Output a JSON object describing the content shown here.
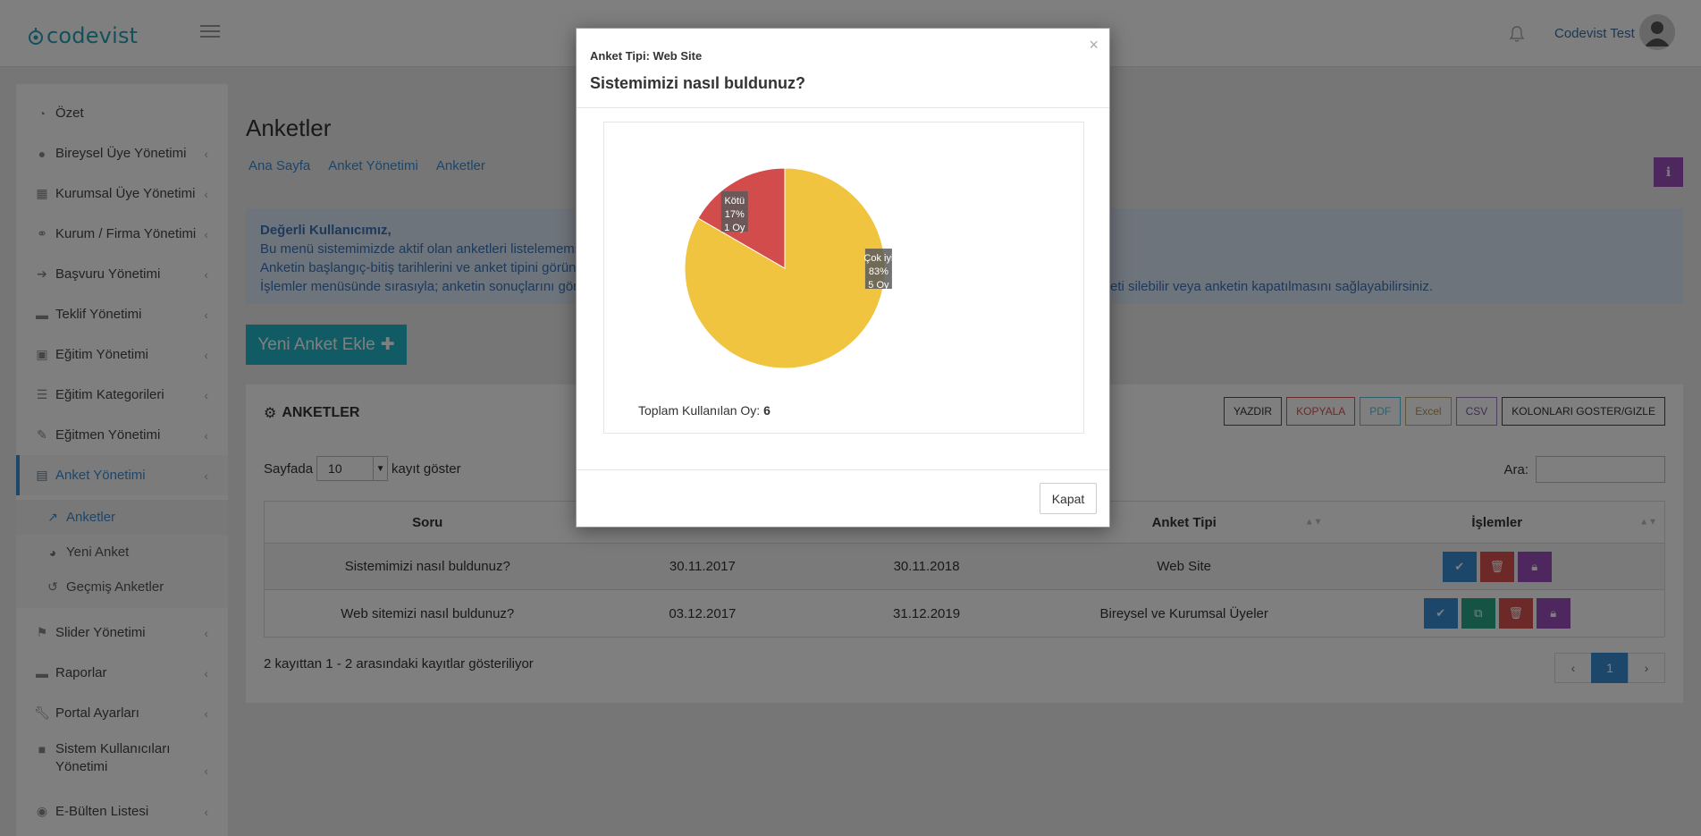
{
  "header": {
    "logo_text": "codevist",
    "user_name": "Codevist Test"
  },
  "sidebar": {
    "items": [
      {
        "label": "Özet",
        "icon": "dashboard-icon",
        "chevron": false
      },
      {
        "label": "Bireysel Üye Yönetimi",
        "icon": "user-icon",
        "chevron": true
      },
      {
        "label": "Kurumsal Üye Yönetimi",
        "icon": "building-icon",
        "chevron": true
      },
      {
        "label": "Kurum / Firma Yönetimi",
        "icon": "handshake-icon",
        "chevron": true
      },
      {
        "label": "Başvuru Yönetimi",
        "icon": "sign-in-icon",
        "chevron": true
      },
      {
        "label": "Teklif Yönetimi",
        "icon": "briefcase-icon",
        "chevron": true
      },
      {
        "label": "Eğitim Yönetimi",
        "icon": "id-card-icon",
        "chevron": true
      },
      {
        "label": "Eğitim Kategorileri",
        "icon": "list-icon",
        "chevron": true
      },
      {
        "label": "Eğitmen Yönetimi",
        "icon": "pencil-icon",
        "chevron": true
      },
      {
        "label": "Anket Yönetimi",
        "icon": "calendar-icon",
        "chevron": true
      }
    ],
    "sub_items": [
      {
        "label": "Anketler",
        "icon": "line-chart-icon"
      },
      {
        "label": "Yeni Anket",
        "icon": "pie-chart-icon"
      },
      {
        "label": "Geçmiş Anketler",
        "icon": "history-icon"
      }
    ],
    "items_after": [
      {
        "label": "Slider Yönetimi",
        "icon": "flag-icon"
      },
      {
        "label": "Raporlar",
        "icon": "briefcase-icon"
      },
      {
        "label": "Portal Ayarları",
        "icon": "wrench-icon"
      },
      {
        "label": "Sistem Kullanıcıları Yönetimi",
        "icon": "lock-icon"
      },
      {
        "label": "E-Bülten Listesi",
        "icon": "globe-icon"
      }
    ]
  },
  "main": {
    "title": "Anketler",
    "breadcrumb": [
      "Ana Sayfa",
      "Anket Yönetimi",
      "Anketler"
    ],
    "alert": {
      "title": "Değerli Kullanıcımız,",
      "line1": "Bu menü sistemimizde aktif olan anketleri listelememi",
      "line2": "Anketin başlangıç-bitiş tarihlerini ve anket tipini görün",
      "line3": "İşlemler menüsünde sırasıyla; anketin sonuçlarını görü",
      "line3_end": "eti silebilir veya anketin kapatılmasını sağlayabilirsiniz."
    },
    "new_button": "Yeni Anket Ekle",
    "panel_title": "ANKETLER",
    "tools": {
      "print": "YAZDIR",
      "copy": "KOPYALA",
      "pdf": "PDF",
      "excel": "Excel",
      "csv": "CSV",
      "cols": "KOLONLARI GOSTER/GIZLE"
    },
    "page_size": {
      "before": "Sayfada",
      "value": "10",
      "after": "kayıt göster"
    },
    "search_label": "Ara:",
    "table": {
      "headers": [
        "Soru",
        "Anket Tipi",
        "İşlemler"
      ],
      "rows": [
        {
          "soru": "Sistemimizi nasıl buldunuz?",
          "start": "30.11.2017",
          "end": "30.11.2018",
          "tip": "Web Site"
        },
        {
          "soru": "Web sitemizi nasıl buldunuz?",
          "start": "03.12.2017",
          "end": "31.12.2019",
          "tip": "Bireysel ve Kurumsal Üyeler"
        }
      ]
    },
    "info": "2 kayıttan 1 - 2 arasındaki kayıtlar gösteriliyor",
    "pager": {
      "prev": "‹",
      "current": "1",
      "next": "›"
    }
  },
  "modal": {
    "subtitle": "Anket Tipi: Web Site",
    "title": "Sistemimizi nasıl buldunuz?",
    "total_label": "Toplam Kullanılan Oy:",
    "total_value": "6",
    "close_label": "Kapat"
  },
  "chart_data": {
    "type": "pie",
    "slices": [
      {
        "label": "Çok iyi",
        "percent": "83%",
        "votes_text": "5 Oy",
        "value": 5,
        "color": "#f0c43e"
      },
      {
        "label": "Kötü",
        "percent": "17%",
        "votes_text": "1 Oy",
        "value": 1,
        "color": "#d24c4c"
      }
    ]
  },
  "colors": {
    "accent": "#3a8dd6",
    "teal": "#23b9c8",
    "purple": "#9c4fbf",
    "danger": "#d9534f"
  }
}
